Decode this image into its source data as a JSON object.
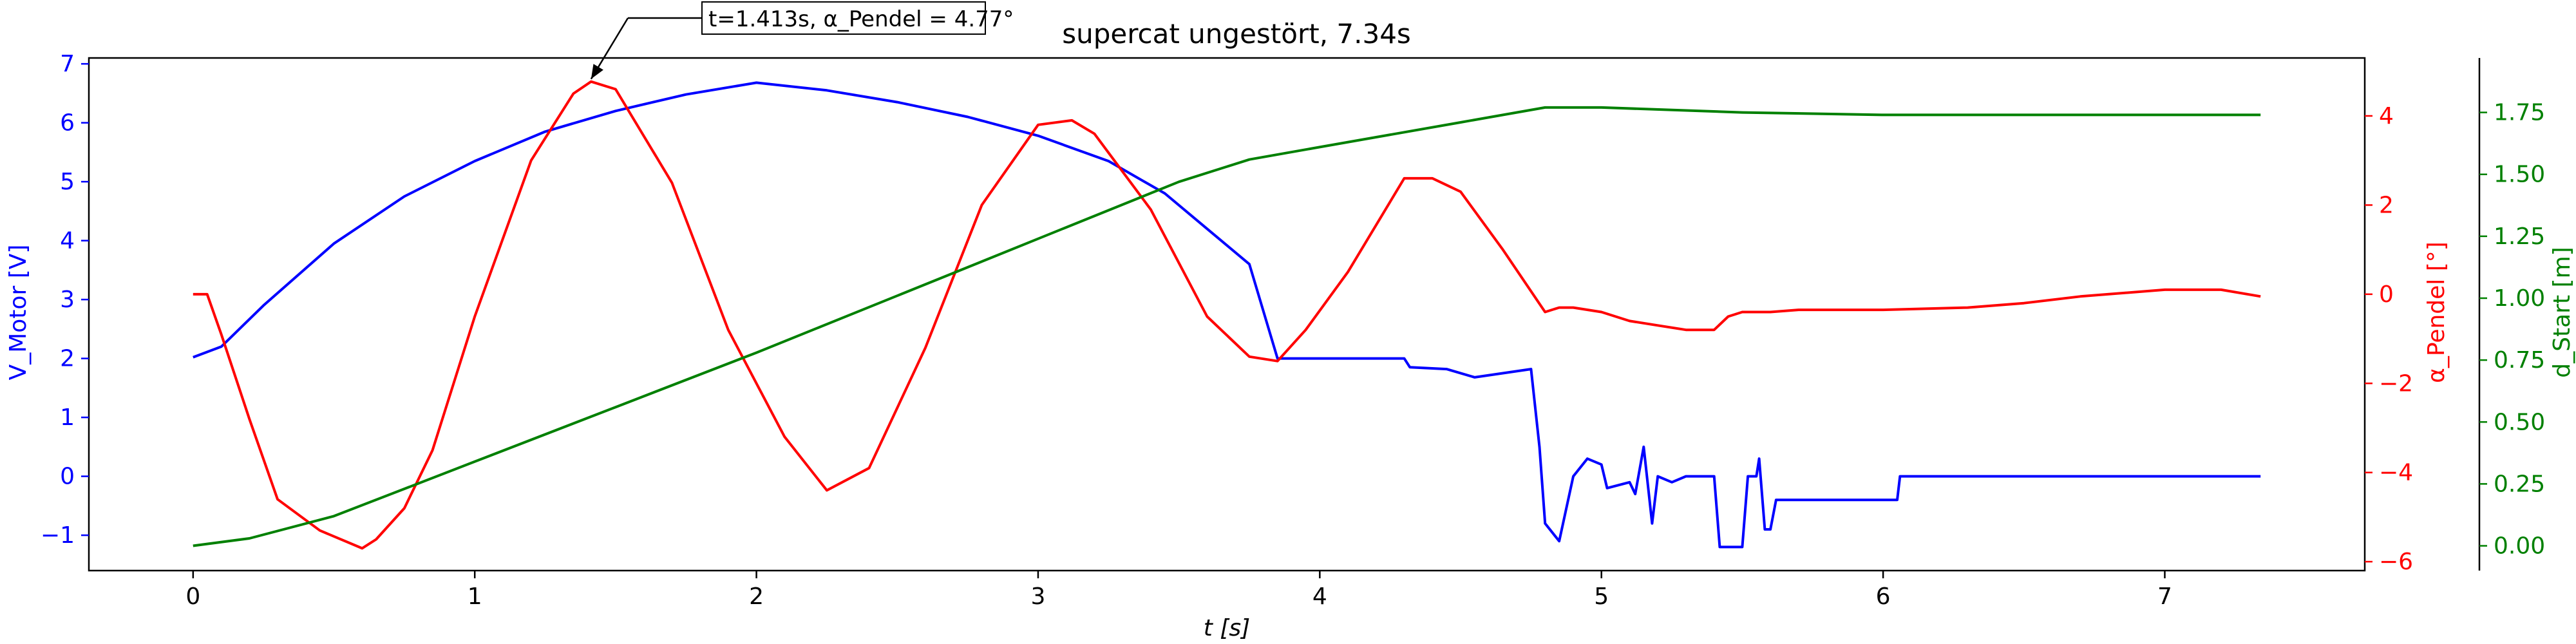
{
  "chart_data": {
    "type": "line",
    "title": "supercat ungestört, 7.34s",
    "xlabel": "t [s]",
    "xlim": [
      -0.37,
      7.71
    ],
    "xticks": [
      "0",
      "1",
      "2",
      "3",
      "4",
      "5",
      "6",
      "7"
    ],
    "grid": false,
    "colors": {
      "motor": "#0000ff",
      "pendel": "#ff0000",
      "start": "#008000",
      "axis": "#000000"
    },
    "axes": {
      "left": {
        "label": "V_Motor [V]",
        "color": "#0000ff",
        "ylim": [
          -1.6,
          7.1
        ],
        "ticks": [
          -1,
          0,
          1,
          2,
          3,
          4,
          5,
          6,
          7
        ]
      },
      "right": {
        "label": "α_Pendel [°]",
        "color": "#ff0000",
        "ylim": [
          -6.2,
          5.3
        ],
        "ticks": [
          -6,
          -4,
          -2,
          0,
          2,
          4
        ]
      },
      "right2": {
        "label": "d_Start [m]",
        "color": "#008000",
        "ylim": [
          -0.1,
          1.97
        ],
        "ticks": [
          "0.00",
          "0.25",
          "0.50",
          "0.75",
          "1.00",
          "1.25",
          "1.50",
          "1.75"
        ]
      }
    },
    "annotation": {
      "text": "t=1.413s, α_Pendel = 4.77°",
      "x": 1.413,
      "y": 4.77
    },
    "series": [
      {
        "axis": "left",
        "color": "#0000ff",
        "x": [
          0,
          0.1,
          0.25,
          0.5,
          0.75,
          1.0,
          1.25,
          1.5,
          1.75,
          2.0,
          2.25,
          2.5,
          2.75,
          3.0,
          3.25,
          3.45,
          3.6,
          3.75,
          3.85,
          3.85,
          4.3,
          4.32,
          4.45,
          4.55,
          4.75,
          4.78,
          4.8,
          4.85,
          4.9,
          4.95,
          5.0,
          5.02,
          5.1,
          5.12,
          5.15,
          5.18,
          5.2,
          5.25,
          5.3,
          5.4,
          5.42,
          5.43,
          5.5,
          5.52,
          5.55,
          5.56,
          5.58,
          5.6,
          5.62,
          5.65,
          6.05,
          6.06,
          7.34
        ],
        "y": [
          2.02,
          2.2,
          2.9,
          3.95,
          4.75,
          5.35,
          5.85,
          6.2,
          6.48,
          6.68,
          6.55,
          6.35,
          6.1,
          5.78,
          5.35,
          4.8,
          4.2,
          3.6,
          2.0,
          2.0,
          2.0,
          1.85,
          1.82,
          1.68,
          1.82,
          0.5,
          -0.8,
          -1.1,
          0.0,
          0.3,
          0.2,
          -0.2,
          -0.1,
          -0.3,
          0.5,
          -0.8,
          0.0,
          -0.1,
          0.0,
          0.0,
          -1.2,
          -1.2,
          -1.2,
          0.0,
          0.0,
          0.3,
          -0.9,
          -0.9,
          -0.4,
          -0.4,
          -0.4,
          0.0,
          0.0
        ]
      },
      {
        "axis": "right",
        "color": "#ff0000",
        "x": [
          0,
          0.05,
          0.1,
          0.2,
          0.3,
          0.45,
          0.6,
          0.65,
          0.75,
          0.85,
          1.0,
          1.2,
          1.35,
          1.413,
          1.5,
          1.7,
          1.9,
          2.1,
          2.25,
          2.4,
          2.6,
          2.8,
          3.0,
          3.12,
          3.2,
          3.4,
          3.6,
          3.75,
          3.85,
          3.95,
          4.1,
          4.3,
          4.4,
          4.5,
          4.65,
          4.8,
          4.85,
          4.9,
          5.0,
          5.1,
          5.2,
          5.3,
          5.4,
          5.45,
          5.5,
          5.6,
          5.7,
          5.8,
          6.0,
          6.3,
          6.5,
          6.7,
          7.0,
          7.2,
          7.34
        ],
        "y": [
          0.0,
          0.0,
          -0.9,
          -2.8,
          -4.6,
          -5.3,
          -5.7,
          -5.5,
          -4.8,
          -3.5,
          -0.5,
          3.0,
          4.5,
          4.77,
          4.6,
          2.5,
          -0.8,
          -3.2,
          -4.4,
          -3.9,
          -1.2,
          2.0,
          3.8,
          3.9,
          3.6,
          1.9,
          -0.5,
          -1.4,
          -1.5,
          -0.8,
          0.5,
          2.6,
          2.6,
          2.3,
          1.0,
          -0.4,
          -0.3,
          -0.3,
          -0.4,
          -0.6,
          -0.7,
          -0.8,
          -0.8,
          -0.5,
          -0.4,
          -0.4,
          -0.35,
          -0.35,
          -0.35,
          -0.3,
          -0.2,
          -0.05,
          0.1,
          0.1,
          -0.05
        ]
      },
      {
        "axis": "right2",
        "color": "#008000",
        "x": [
          0,
          0.2,
          0.5,
          1.0,
          1.5,
          2.0,
          2.5,
          3.0,
          3.5,
          3.75,
          4.0,
          4.5,
          4.8,
          5.0,
          5.5,
          6.0,
          6.5,
          7.0,
          7.34
        ],
        "y": [
          0.0,
          0.03,
          0.12,
          0.34,
          0.56,
          0.78,
          1.01,
          1.24,
          1.47,
          1.56,
          1.61,
          1.71,
          1.77,
          1.77,
          1.75,
          1.74,
          1.74,
          1.74,
          1.74
        ]
      }
    ]
  }
}
